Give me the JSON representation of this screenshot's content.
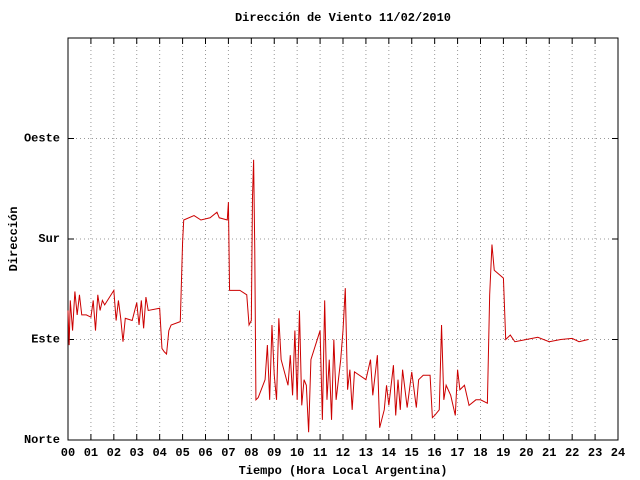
{
  "chart_data": {
    "type": "line",
    "title": "Dirección de Viento 11/02/2010",
    "xlabel": "Tiempo (Hora Local Argentina)",
    "ylabel": "Dirección",
    "xlim": [
      0,
      24
    ],
    "xticks": [
      {
        "value": 0,
        "label": "00"
      },
      {
        "value": 1,
        "label": "01"
      },
      {
        "value": 2,
        "label": "02"
      },
      {
        "value": 3,
        "label": "03"
      },
      {
        "value": 4,
        "label": "04"
      },
      {
        "value": 5,
        "label": "05"
      },
      {
        "value": 6,
        "label": "06"
      },
      {
        "value": 7,
        "label": "07"
      },
      {
        "value": 8,
        "label": "08"
      },
      {
        "value": 9,
        "label": "09"
      },
      10,
      11,
      12,
      13,
      14,
      15,
      16,
      17,
      18,
      19,
      20,
      21,
      22,
      23,
      24
    ],
    "ylim": [
      0,
      360
    ],
    "yticks": [
      {
        "value": 0,
        "label": "Norte"
      },
      {
        "value": 90,
        "label": "Este"
      },
      {
        "value": 180,
        "label": "Sur"
      },
      {
        "value": 270,
        "label": "Oeste"
      }
    ],
    "grid": true,
    "series": [
      {
        "color": "#cc0000",
        "x": [
          0.0,
          0.05,
          0.1,
          0.2,
          0.3,
          0.4,
          0.5,
          0.6,
          0.8,
          1.0,
          1.1,
          1.2,
          1.3,
          1.4,
          1.5,
          1.6,
          2.0,
          2.1,
          2.2,
          2.3,
          2.4,
          2.5,
          2.8,
          3.0,
          3.1,
          3.2,
          3.3,
          3.4,
          3.5,
          4.0,
          4.1,
          4.2,
          4.3,
          4.4,
          4.5,
          4.9,
          5.0,
          5.05,
          5.5,
          5.8,
          6.2,
          6.5,
          6.6,
          6.95,
          7.0,
          7.05,
          7.5,
          7.8,
          7.9,
          8.0,
          8.05,
          8.1,
          8.15,
          8.2,
          8.3,
          8.6,
          8.7,
          8.8,
          8.9,
          9.0,
          9.1,
          9.2,
          9.3,
          9.6,
          9.7,
          9.8,
          9.9,
          10.0,
          10.1,
          10.2,
          10.3,
          10.4,
          10.5,
          10.6,
          11.0,
          11.1,
          11.2,
          11.3,
          11.4,
          11.5,
          11.6,
          11.7,
          11.9,
          12.0,
          12.1,
          12.2,
          12.3,
          12.4,
          12.5,
          13.0,
          13.2,
          13.3,
          13.5,
          13.6,
          13.8,
          13.9,
          14.0,
          14.2,
          14.3,
          14.4,
          14.5,
          14.6,
          14.8,
          15.0,
          15.2,
          15.3,
          15.5,
          15.8,
          15.9,
          16.0,
          16.2,
          16.3,
          16.4,
          16.5,
          16.7,
          16.9,
          17.0,
          17.1,
          17.3,
          17.5,
          17.8,
          18.0,
          18.3,
          18.4,
          18.5,
          18.6,
          19.0,
          19.1,
          19.3,
          19.5,
          20.0,
          20.5,
          21.0,
          21.5,
          22.0,
          22.3,
          22.7
        ],
        "values": [
          116,
          85,
          125,
          98,
          133,
          112,
          130,
          112,
          112,
          110,
          125,
          98,
          130,
          116,
          125,
          121,
          134,
          107,
          125,
          109,
          88,
          109,
          107,
          123,
          103,
          125,
          100,
          128,
          116,
          118,
          82,
          79,
          77,
          98,
          103,
          106,
          177,
          197,
          201,
          197,
          199,
          204,
          199,
          197,
          213,
          134,
          134,
          130,
          103,
          107,
          217,
          251,
          170,
          36,
          38,
          54,
          85,
          36,
          103,
          58,
          36,
          109,
          72,
          49,
          76,
          40,
          98,
          36,
          116,
          31,
          54,
          49,
          7,
          72,
          98,
          18,
          125,
          36,
          72,
          18,
          90,
          36,
          72,
          98,
          136,
          45,
          63,
          27,
          61,
          54,
          72,
          40,
          76,
          11,
          27,
          49,
          31,
          67,
          22,
          54,
          27,
          63,
          29,
          61,
          29,
          54,
          58,
          58,
          20,
          22,
          27,
          103,
          36,
          49,
          40,
          22,
          63,
          45,
          49,
          31,
          36,
          36,
          33,
          130,
          175,
          152,
          145,
          90,
          94,
          88,
          90,
          92,
          88,
          90,
          91,
          88,
          90
        ]
      }
    ]
  }
}
